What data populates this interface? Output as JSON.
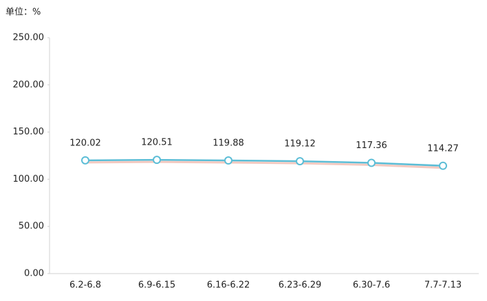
{
  "chart_data": {
    "type": "line",
    "y_label": "单位：%",
    "categories": [
      "6.2-6.8",
      "6.9-6.15",
      "6.16-6.22",
      "6.23-6.29",
      "6.30-7.6",
      "7.7-7.13"
    ],
    "values": [
      120.02,
      120.51,
      119.88,
      119.12,
      117.36,
      114.27
    ],
    "color": "#5bbdd6",
    "ylim": [
      0,
      250
    ],
    "yticks": [
      {
        "value": 0,
        "label": "0.00"
      },
      {
        "value": 50,
        "label": "50.00"
      },
      {
        "value": 100,
        "label": "100.00"
      },
      {
        "value": 150,
        "label": "150.00"
      },
      {
        "value": 200,
        "label": "200.00"
      },
      {
        "value": 250,
        "label": "250.00"
      }
    ],
    "grid": false
  }
}
